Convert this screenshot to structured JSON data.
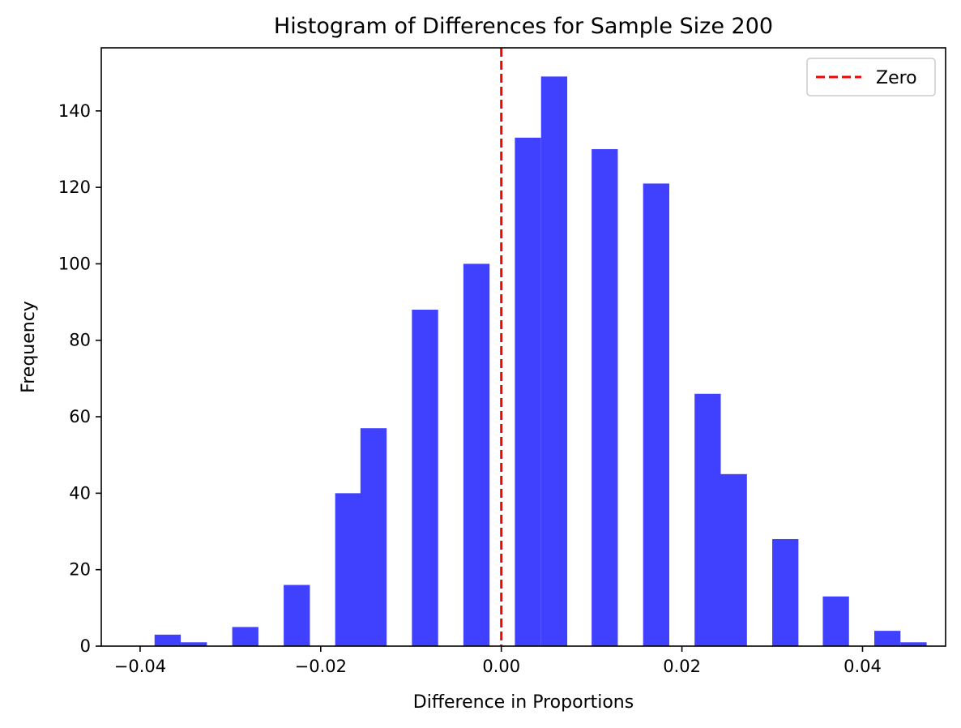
{
  "chart_data": {
    "type": "bar",
    "title": "Histogram of Differences for Sample Size 200",
    "xlabel": "Difference in Proportions",
    "ylabel": "Frequency",
    "xlim": [
      -0.0443,
      0.0492
    ],
    "ylim": [
      0,
      156.5
    ],
    "grid": false,
    "legend_placement": "top-right",
    "bar_color": "#4040ff",
    "bin_width": 0.0029,
    "bins": [
      {
        "x": -0.0384,
        "value": 3
      },
      {
        "x": -0.0355,
        "value": 1
      },
      {
        "x": -0.0298,
        "value": 5
      },
      {
        "x": -0.0241,
        "value": 16
      },
      {
        "x": -0.0184,
        "value": 40
      },
      {
        "x": -0.0156,
        "value": 57
      },
      {
        "x": -0.0099,
        "value": 88
      },
      {
        "x": -0.0042,
        "value": 100
      },
      {
        "x": 0.0015,
        "value": 133
      },
      {
        "x": 0.0044,
        "value": 149
      },
      {
        "x": 0.01,
        "value": 130
      },
      {
        "x": 0.0157,
        "value": 121
      },
      {
        "x": 0.0214,
        "value": 66
      },
      {
        "x": 0.0243,
        "value": 45
      },
      {
        "x": 0.03,
        "value": 28
      },
      {
        "x": 0.0356,
        "value": 13
      },
      {
        "x": 0.0413,
        "value": 4
      },
      {
        "x": 0.0442,
        "value": 1
      }
    ],
    "x_ticks": [
      {
        "value": -0.04,
        "label": "−0.04"
      },
      {
        "value": -0.02,
        "label": "−0.02"
      },
      {
        "value": 0.0,
        "label": "0.00"
      },
      {
        "value": 0.02,
        "label": "0.02"
      },
      {
        "value": 0.04,
        "label": "0.04"
      }
    ],
    "y_ticks": [
      {
        "value": 0,
        "label": "0"
      },
      {
        "value": 20,
        "label": "20"
      },
      {
        "value": 40,
        "label": "40"
      },
      {
        "value": 60,
        "label": "60"
      },
      {
        "value": 80,
        "label": "80"
      },
      {
        "value": 100,
        "label": "100"
      },
      {
        "value": 120,
        "label": "120"
      },
      {
        "value": 140,
        "label": "140"
      }
    ],
    "reference_line": {
      "x": 0.0,
      "color": "#ff0000",
      "style": "dashed",
      "label": "Zero"
    }
  }
}
